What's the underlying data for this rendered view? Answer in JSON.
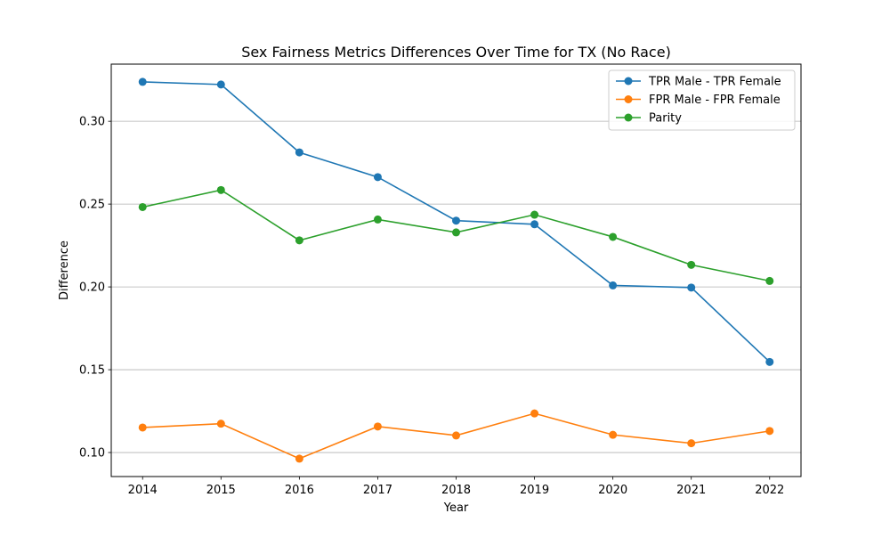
{
  "chart_data": {
    "type": "line",
    "title": "Sex Fairness Metrics Differences Over Time for TX (No Race)",
    "xlabel": "Year",
    "ylabel": "Difference",
    "x": [
      2014,
      2015,
      2016,
      2017,
      2018,
      2019,
      2020,
      2021,
      2022
    ],
    "xlim": [
      2013.6,
      2022.4
    ],
    "ylim": [
      0.0855,
      0.3345
    ],
    "yticks": [
      0.1,
      0.15,
      0.2,
      0.25,
      0.3
    ],
    "ytick_labels": [
      "0.10",
      "0.15",
      "0.20",
      "0.25",
      "0.30"
    ],
    "xtick_labels": [
      "2014",
      "2015",
      "2016",
      "2017",
      "2018",
      "2019",
      "2020",
      "2021",
      "2022"
    ],
    "grid": "y-axis horizontal lines",
    "legend_position": "top-right",
    "series": [
      {
        "name": "TPR Male - TPR Female",
        "color": "#1f77b4",
        "values": [
          0.3238,
          0.3222,
          0.2812,
          0.2663,
          0.24,
          0.2378,
          0.2009,
          0.1996,
          0.1547
        ]
      },
      {
        "name": "FPR Male - FPR Female",
        "color": "#ff7f0e",
        "values": [
          0.1151,
          0.1174,
          0.0963,
          0.1157,
          0.1103,
          0.1236,
          0.1107,
          0.1056,
          0.113
        ]
      },
      {
        "name": "Parity",
        "color": "#2ca02c",
        "values": [
          0.2482,
          0.2585,
          0.2281,
          0.2407,
          0.2329,
          0.2436,
          0.2302,
          0.2133,
          0.2036
        ]
      }
    ]
  }
}
